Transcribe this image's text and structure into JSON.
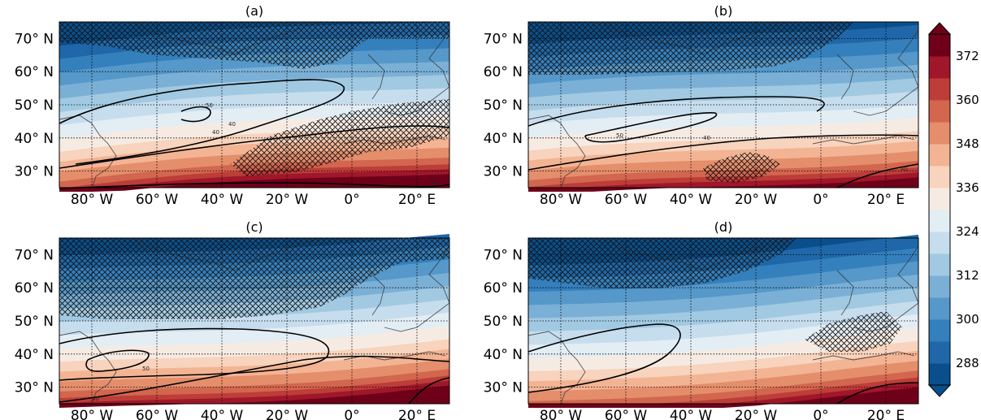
{
  "colormap": [
    "#0a4f8c",
    "#1f67a8",
    "#3480bd",
    "#5598c9",
    "#7bb0d6",
    "#a1c9e2",
    "#c6ddee",
    "#e3edf4",
    "#f6ebe3",
    "#f8d3bd",
    "#f3b494",
    "#e48e6c",
    "#d2664e",
    "#bd3d38",
    "#a0162a",
    "#6e0019"
  ],
  "colorbar": {
    "ticks": [
      "288",
      "300",
      "312",
      "324",
      "336",
      "348",
      "360",
      "372"
    ]
  },
  "panels": [
    {
      "title": "(a)",
      "lat_labels": [
        "70° N",
        "60° N",
        "50° N",
        "40° N",
        "30° N"
      ],
      "lon_labels": [
        "80° W",
        "60° W",
        "40° W",
        "20° W",
        "0°",
        "20° E"
      ],
      "contour_labels": [
        "50",
        "40",
        "40",
        "30"
      ],
      "hatch_regions": [
        "high-latitude",
        "eastern-atlantic"
      ]
    },
    {
      "title": "(b)",
      "lat_labels": [
        "70° N",
        "60° N",
        "50° N",
        "40° N",
        "30° N"
      ],
      "lon_labels": [
        "80° W",
        "60° W",
        "40° W",
        "20° W",
        "0°",
        "20° E"
      ],
      "contour_labels": [
        "50",
        "40",
        "40"
      ],
      "hatch_regions": [
        "high-latitude",
        "subtropical-atlantic"
      ]
    },
    {
      "title": "(c)",
      "lat_labels": [
        "70° N",
        "60° N",
        "50° N",
        "40° N",
        "30° N"
      ],
      "lon_labels": [
        "80° W",
        "60° W",
        "40° W",
        "20° W",
        "0°",
        "20° E"
      ],
      "contour_labels": [
        "50",
        "40"
      ],
      "hatch_regions": [
        "high-latitude"
      ]
    },
    {
      "title": "(d)",
      "lat_labels": [
        "70° N",
        "60° N",
        "50° N",
        "40° N",
        "30° N"
      ],
      "lon_labels": [
        "80° W",
        "60° W",
        "40° W",
        "20° W",
        "0°",
        "20° E"
      ],
      "contour_labels": [],
      "hatch_regions": [
        "high-latitude",
        "mediterranean"
      ]
    }
  ]
}
